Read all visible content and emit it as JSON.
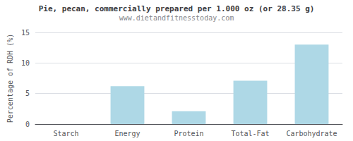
{
  "chart_data": {
    "type": "bar",
    "title": "Pie, pecan, commercially prepared per 1.000 oz (or 28.35 g)",
    "subtitle": "www.dietandfitnesstoday.com",
    "categories": [
      "Starch",
      "Energy",
      "Protein",
      "Total-Fat",
      "Carbohydrate"
    ],
    "values": [
      0,
      6.2,
      2.1,
      7.1,
      13.0
    ],
    "color": "#aed8e6",
    "ylabel": "Percentage of RDH (%)",
    "ylim": [
      0,
      15
    ],
    "yticks": [
      0,
      5,
      10,
      15
    ],
    "grid": true
  }
}
